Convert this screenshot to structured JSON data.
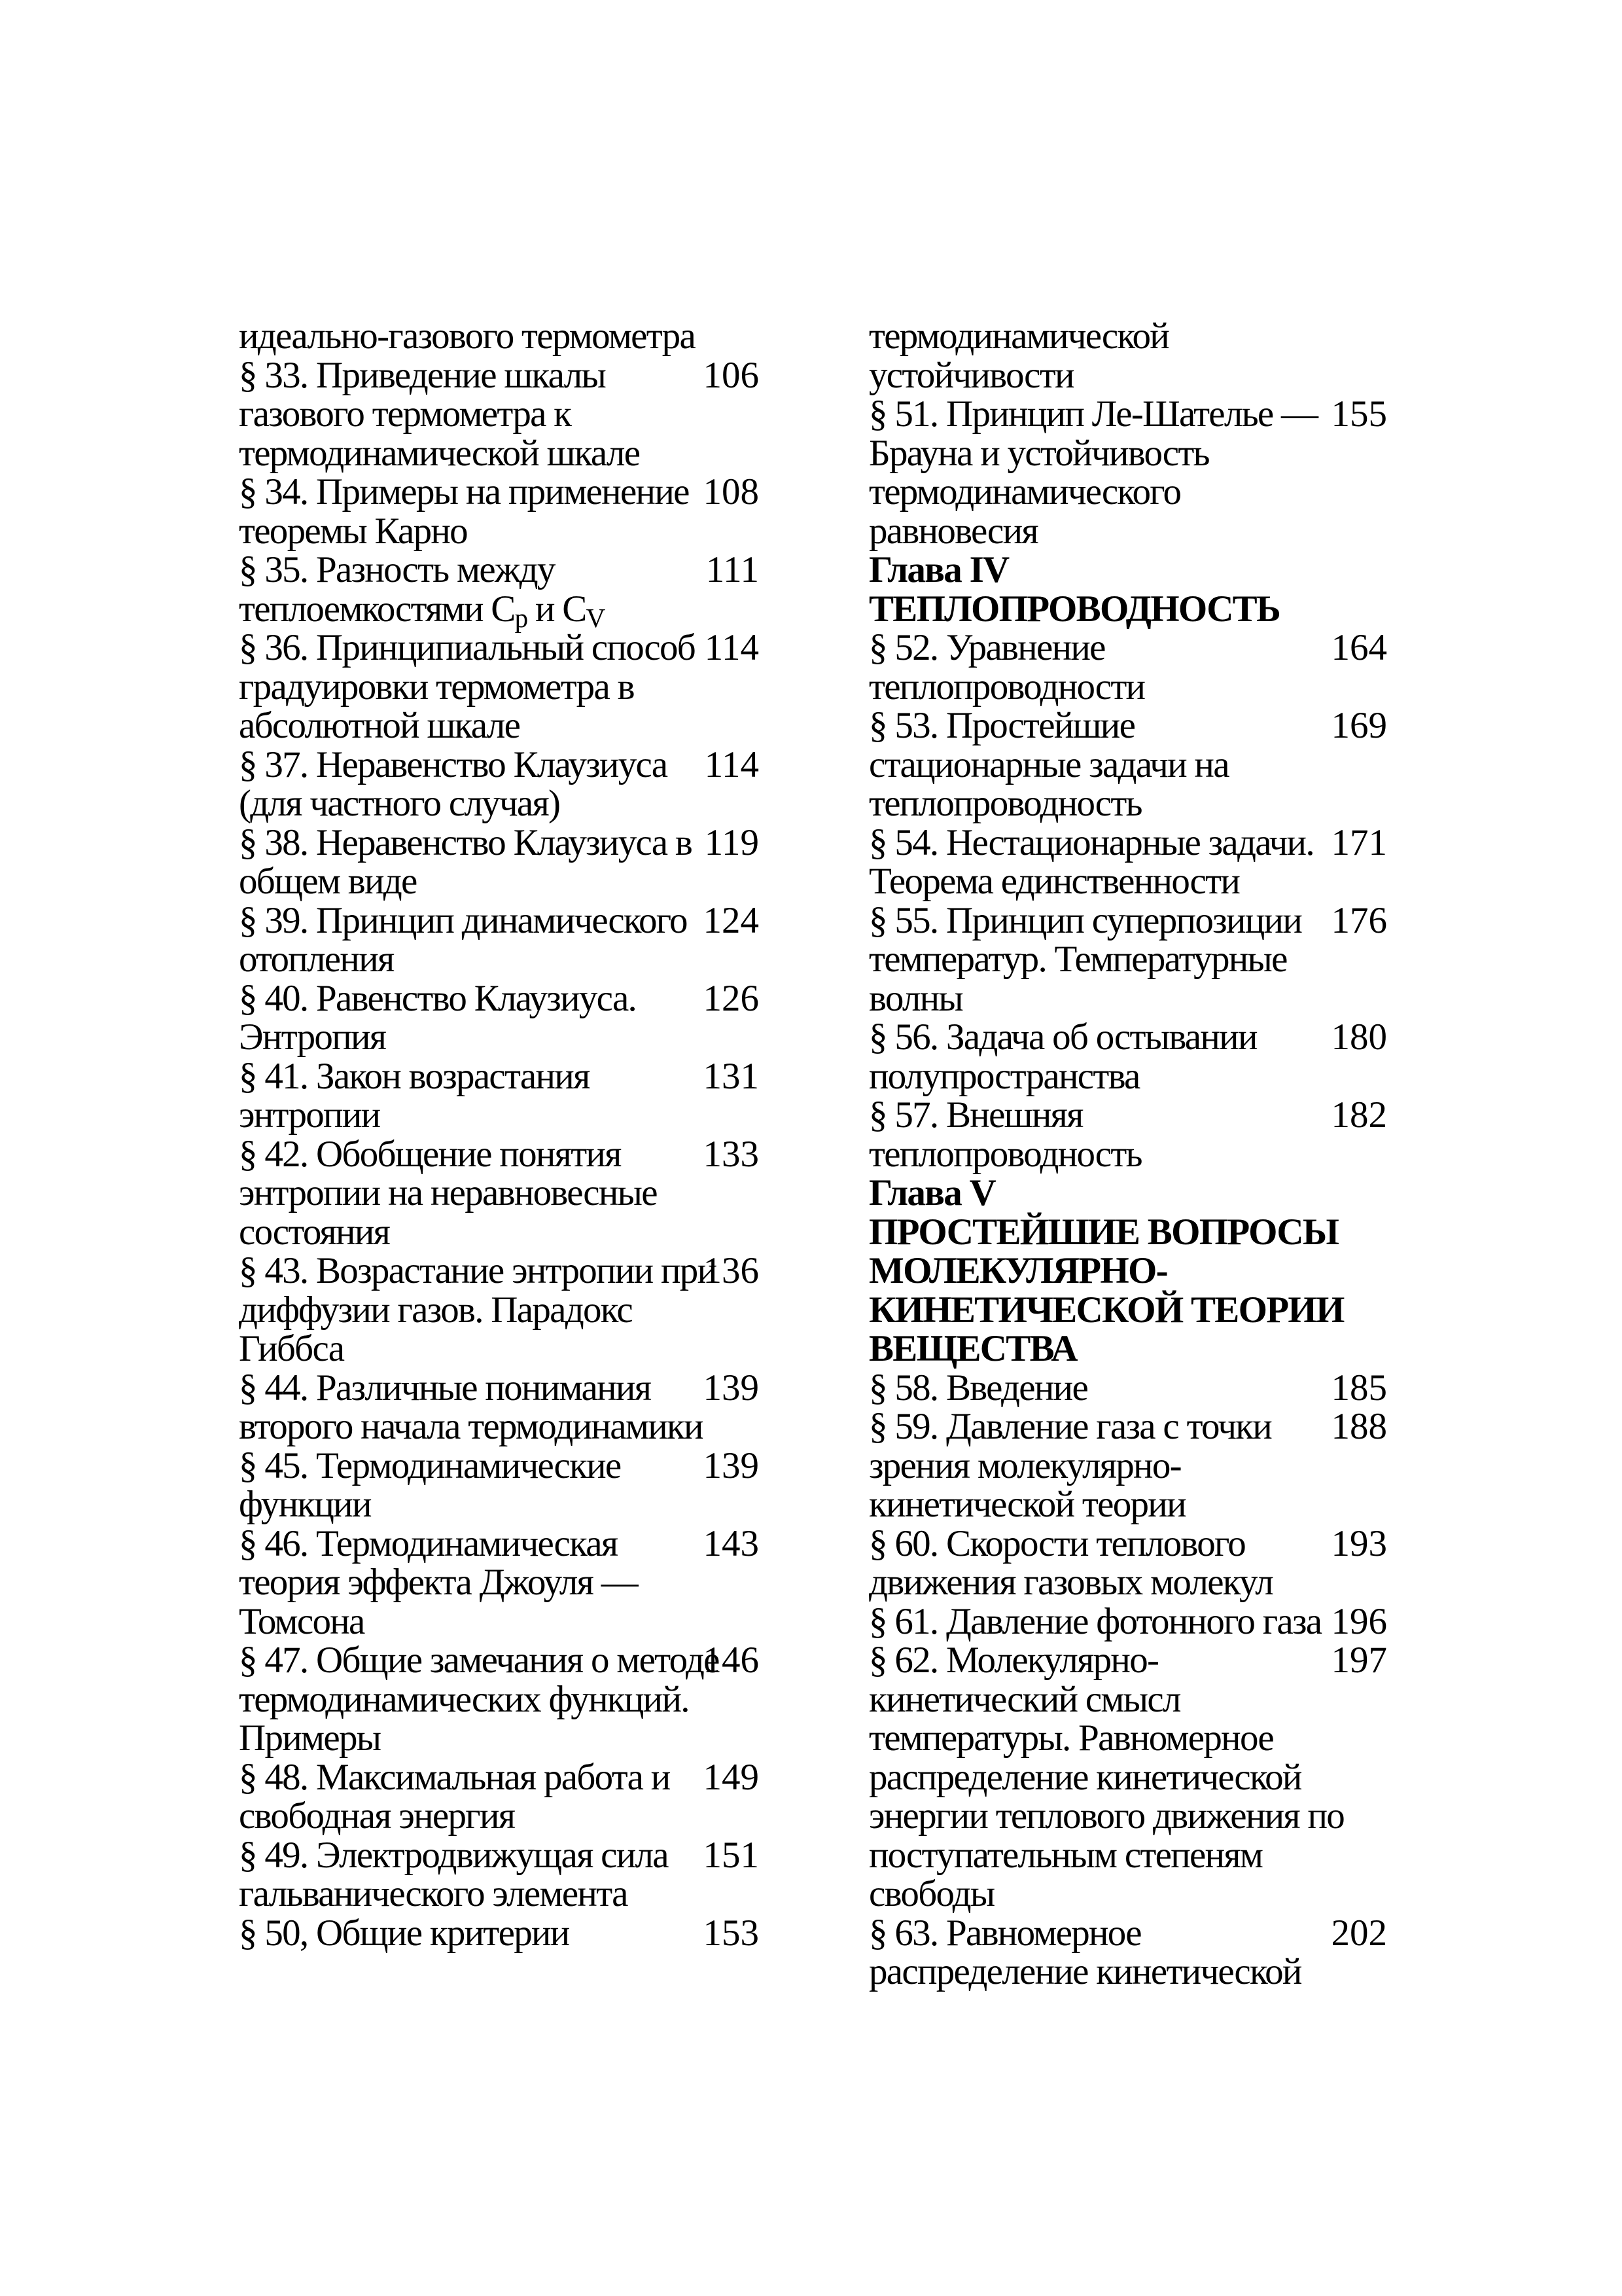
{
  "page": {
    "background_color": "#ffffff",
    "text_color": "#000000"
  },
  "columns": [
    {
      "name": "left",
      "lines": [
        {
          "text": "идеально-газового термометра"
        },
        {
          "text": "§ 33. Приведение шкалы",
          "page": "106"
        },
        {
          "text": "газового термометра к"
        },
        {
          "text": "термодинамической шкале"
        },
        {
          "text": "§ 34. Примеры на применение",
          "page": "108"
        },
        {
          "text": "теоремы Карно"
        },
        {
          "text": "§ 35. Разность между",
          "page": "111"
        },
        {
          "segments": [
            {
              "text": "теплоемкостями C",
              "sub": false
            },
            {
              "text": "p",
              "sub": true
            },
            {
              "text": " и C",
              "sub": false
            },
            {
              "text": "V",
              "sub": true
            }
          ]
        },
        {
          "text": "§ 36. Принципиальный способ",
          "page": "114"
        },
        {
          "text": "градуировки термометра в"
        },
        {
          "text": "абсолютной шкале"
        },
        {
          "text": "§ 37. Неравенство Клаузиуса",
          "page": "114"
        },
        {
          "text": "(для частного случая)"
        },
        {
          "text": "§ 38. Неравенство Клаузиуса в",
          "page": "119"
        },
        {
          "text": "общем виде"
        },
        {
          "text": "§ 39. Принцип динамического",
          "page": "124"
        },
        {
          "text": "отопления"
        },
        {
          "text": "§ 40. Равенство Клаузиуса.",
          "page": "126"
        },
        {
          "text": "Энтропия"
        },
        {
          "text": "§ 41. Закон возрастания",
          "page": "131"
        },
        {
          "text": "энтропии"
        },
        {
          "text": "§ 42. Обобщение понятия",
          "page": "133"
        },
        {
          "text": "энтропии на неравновесные"
        },
        {
          "text": "состояния"
        },
        {
          "text": "§ 43. Возрастание энтропии при",
          "page": "136"
        },
        {
          "text": "диффузии газов. Парадокс"
        },
        {
          "text": "Гиббса"
        },
        {
          "text": "§ 44. Различные понимания",
          "page": "139"
        },
        {
          "text": "второго начала термодинамики"
        },
        {
          "text": "§ 45. Термодинамические",
          "page": "139"
        },
        {
          "text": "функции"
        },
        {
          "text": "§ 46. Термодинамическая",
          "page": "143"
        },
        {
          "text": "теория эффекта Джоуля —"
        },
        {
          "text": "Томсона"
        },
        {
          "text": "§ 47. Общие замечания о методе",
          "page": "146"
        },
        {
          "text": "термодинамических функций."
        },
        {
          "text": "Примеры"
        },
        {
          "text": "§ 48. Максимальная работа и",
          "page": "149"
        },
        {
          "text": "свободная энергия"
        },
        {
          "text": "§ 49. Электродвижущая сила",
          "page": "151"
        },
        {
          "text": "гальванического элемента"
        },
        {
          "text": "§ 50, Общие критерии",
          "page": "153"
        }
      ]
    },
    {
      "name": "right",
      "lines": [
        {
          "text": "термодинамической"
        },
        {
          "text": "устойчивости"
        },
        {
          "text": "§ 51. Принцип Ле-Шателье —",
          "page": "155"
        },
        {
          "text": "Брауна и устойчивость"
        },
        {
          "text": "термодинамического"
        },
        {
          "text": "равновесия"
        },
        {
          "text": "Глава IV",
          "bold": true
        },
        {
          "text": "ТЕПЛОПРОВОДНОСТЬ",
          "bold": true
        },
        {
          "text": "§ 52. Уравнение",
          "page": "164"
        },
        {
          "text": "теплопроводности"
        },
        {
          "text": "§ 53. Простейшие",
          "page": "169"
        },
        {
          "text": "стационарные задачи на"
        },
        {
          "text": "теплопроводность"
        },
        {
          "text": "§ 54. Нестационарные задачи.",
          "page": "171"
        },
        {
          "text": "Теорема единственности"
        },
        {
          "text": "§ 55. Принцип суперпозиции",
          "page": "176"
        },
        {
          "text": "температур. Температурные"
        },
        {
          "text": "волны"
        },
        {
          "text": "§ 56. Задача об остывании",
          "page": "180"
        },
        {
          "text": "полупространства"
        },
        {
          "text": "§ 57. Внешняя",
          "page": "182"
        },
        {
          "text": "теплопроводность"
        },
        {
          "text": "Глава V",
          "bold": true
        },
        {
          "text": "ПРОСТЕЙШИЕ ВОПРОСЫ",
          "bold": true
        },
        {
          "text": "МОЛЕКУЛЯРНО-",
          "bold": true
        },
        {
          "text": "КИНЕТИЧЕСКОЙ ТЕОРИИ",
          "bold": true
        },
        {
          "text": "ВЕЩЕСТВА",
          "bold": true
        },
        {
          "text": "§ 58. Введение",
          "page": "185"
        },
        {
          "text": "§ 59. Давление газа с точки",
          "page": "188"
        },
        {
          "text": "зрения молекулярно-"
        },
        {
          "text": "кинетической теории"
        },
        {
          "text": "§ 60. Скорости теплового",
          "page": "193"
        },
        {
          "text": "движения газовых молекул"
        },
        {
          "text": "§ 61. Давление фотонного газа",
          "page": "196"
        },
        {
          "text": "§ 62. Молекулярно-",
          "page": "197"
        },
        {
          "text": "кинетический смысл"
        },
        {
          "text": "температуры. Равномерное"
        },
        {
          "text": "распределение кинетической"
        },
        {
          "text": "энергии теплового движения по"
        },
        {
          "text": "поступательным степеням"
        },
        {
          "text": "свободы"
        },
        {
          "text": "§ 63. Равномерное",
          "page": "202"
        },
        {
          "text": "распределение кинетической"
        }
      ]
    }
  ]
}
